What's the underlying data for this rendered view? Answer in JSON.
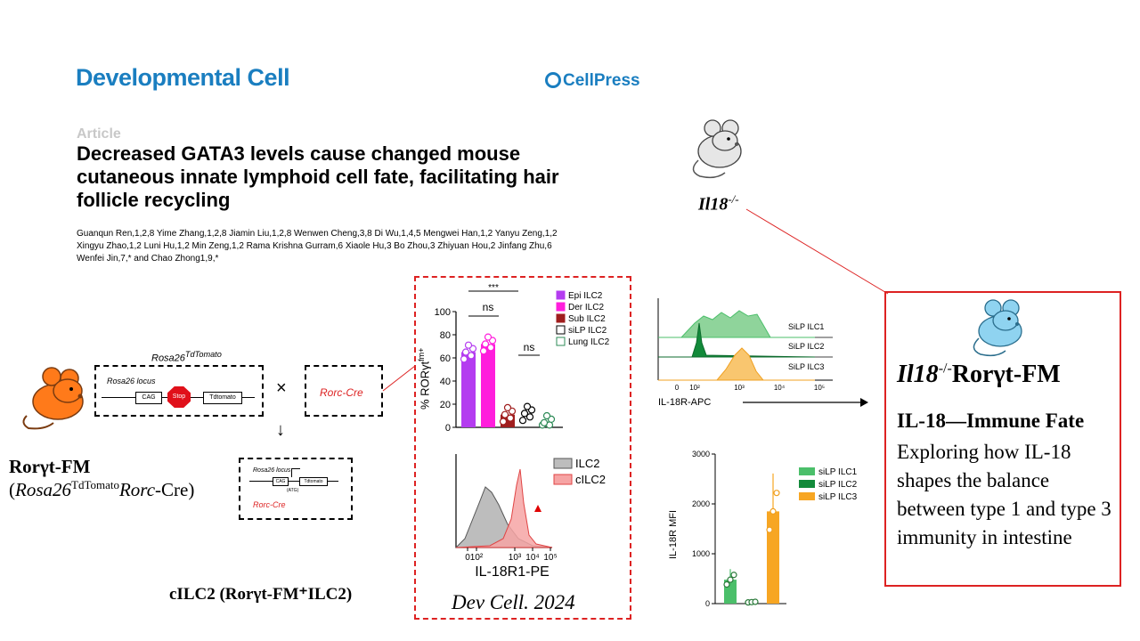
{
  "header": {
    "journal": "Developmental Cell",
    "publisher": "CellPress",
    "article_type": "Article",
    "title": "Decreased GATA3 levels cause changed mouse cutaneous innate lymphoid cell fate, facilitating hair follicle recycling",
    "authors_line1": "Guanqun Ren,1,2,8 Yime Zhang,1,2,8 Jiamin Liu,1,2,8 Wenwen Cheng,3,8 Di Wu,1,4,5 Mengwei Han,1,2 Yanyu Zeng,1,2",
    "authors_line2": "Xingyu Zhao,1,2 Luni Hu,1,2 Min Zeng,1,2 Rama Krishna Gurram,6 Xiaole Hu,3 Bo Zhou,3 Zhiyuan Hou,2 Jinfang Zhu,6",
    "authors_line3": "Wenfei Jin,7,* and Chao Zhong1,9,*"
  },
  "breeding": {
    "rosa_title": "Rosa26",
    "rosa_title_sup": "TdTomato",
    "rosa_locus": "Rosa26 locus",
    "cag": "CAG",
    "stop": "Stop",
    "tdtomato": "Tdtomato",
    "times": "×",
    "cre_box": "Rorc-Cre",
    "arrow": "↓",
    "result_locus": "Rosa26 locus",
    "result_atg": "(ATG)",
    "result_cre": "Rorc-Cre",
    "mouse_name": "Rorγt-FM",
    "mouse_genotype_a": "(",
    "mouse_genotype_b": "Rosa26",
    "mouse_genotype_sup": "TdTomato",
    "mouse_genotype_c": "Rorc",
    "mouse_genotype_d": "-Cre)"
  },
  "cilc2_label": "cILC2 (Rorγt-FM⁺ILC2)",
  "citation": "Dev Cell. 2024",
  "bar_chart": {
    "ylabel": "% RORγt",
    "ylabel_sup": "fm+",
    "yticks": [
      "0",
      "20",
      "40",
      "60",
      "80",
      "100"
    ],
    "ymax": 100,
    "groups": [
      {
        "name": "Epi ILC2",
        "color": "#b43cf0",
        "value": 65
      },
      {
        "name": "Der ILC2",
        "color": "#ff1edc",
        "value": 72
      },
      {
        "name": "Sub ILC2",
        "color": "#a01e1e",
        "value": 11
      },
      {
        "name": "siLP ILC2",
        "color": "#ffffff",
        "value": 12
      },
      {
        "name": "Lung ILC2",
        "color": "#ffffff",
        "value": 4
      }
    ],
    "sig1": "***",
    "sig2": "ns",
    "sig3": "ns"
  },
  "hist1": {
    "legend": [
      "ILC2",
      "cILC2"
    ],
    "xlabel": "IL-18R1-PE",
    "xticks": [
      "0",
      "10²",
      "10³",
      "10⁴",
      "10⁵"
    ]
  },
  "hist2": {
    "labels": [
      "SiLP ILC1",
      "SiLP ILC2",
      "SiLP ILC3"
    ],
    "xlabel": "IL-18R-APC",
    "xticks": [
      "0",
      "10²",
      "10³",
      "10⁴",
      "10⁵"
    ]
  },
  "chart_data": {
    "type": "bar",
    "categories": [
      "siLP ILC1",
      "siLP ILC2",
      "siLP ILC3"
    ],
    "values": [
      480,
      30,
      1850
    ],
    "ylabel": "IL-18R MFI",
    "ylim": [
      0,
      3000
    ],
    "yticks": [
      "0",
      "1000",
      "2000",
      "3000"
    ],
    "colors": [
      "#4bbf6a",
      "#128a3a",
      "#f7a623"
    ]
  },
  "il18_label": "Il18",
  "il18_sup": "-/-",
  "right_panel": {
    "title_a": "Il18",
    "title_sup": "-/-",
    "title_b": "Rorγt-FM",
    "subtitle": "IL-18—Immune Fate",
    "body": "Exploring how IL-18 shapes the balance between type 1 and type 3 immunity in intestine"
  }
}
